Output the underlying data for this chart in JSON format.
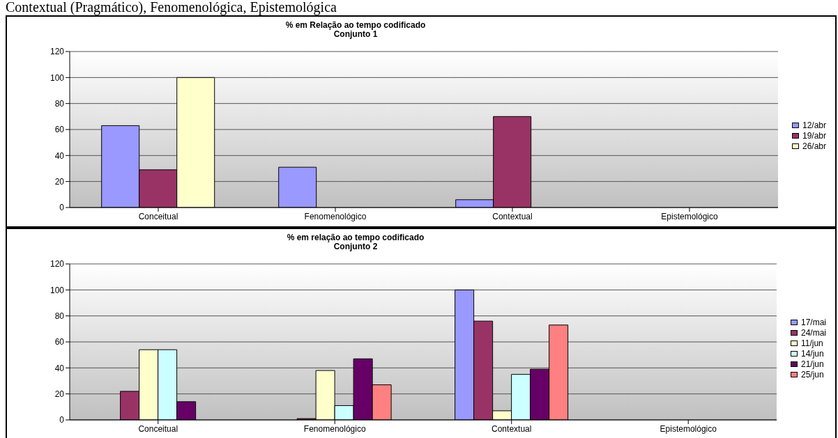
{
  "chart_data": [
    {
      "type": "bar",
      "title": "% em Relação ao tempo codificado\nConjunto 1",
      "annotations": [
        "Contextual (Pragmático), Fenomenológica, Epistemológica"
      ],
      "categories": [
        "Conceitual",
        "Fenomenológico",
        "Contextual",
        "Epistemológico"
      ],
      "series": [
        {
          "name": "12/abr",
          "color": "#9999ff",
          "values": [
            63,
            31,
            6,
            0
          ]
        },
        {
          "name": "19/abr",
          "color": "#993366",
          "values": [
            29,
            0,
            70,
            0
          ]
        },
        {
          "name": "26/abr",
          "color": "#ffffcc",
          "values": [
            100,
            0,
            0,
            0
          ]
        }
      ],
      "ylim": [
        0,
        120
      ],
      "yticks": [
        0,
        20,
        40,
        60,
        80,
        100,
        120
      ],
      "grid": "y",
      "legend": "right"
    },
    {
      "type": "bar",
      "title": "% em relação ao tempo codificado\nConjunto 2",
      "categories": [
        "Conceitual",
        "Fenomenológico",
        "Contextual",
        "Epistemológico"
      ],
      "series": [
        {
          "name": "17/mai",
          "color": "#9999ff",
          "values": [
            0,
            0,
            100,
            0
          ]
        },
        {
          "name": "24/mai",
          "color": "#993366",
          "values": [
            22,
            1,
            76,
            0
          ]
        },
        {
          "name": "11/jun",
          "color": "#ffffcc",
          "values": [
            54,
            38,
            7,
            0
          ]
        },
        {
          "name": "14/jun",
          "color": "#ccffff",
          "values": [
            54,
            11,
            35,
            0
          ]
        },
        {
          "name": "21/jun",
          "color": "#660066",
          "values": [
            14,
            47,
            39,
            0
          ]
        },
        {
          "name": "25/jun",
          "color": "#ff8080",
          "values": [
            0,
            27,
            73,
            0
          ]
        }
      ],
      "ylim": [
        0,
        120
      ],
      "yticks": [
        0,
        20,
        40,
        60,
        80,
        100,
        120
      ],
      "grid": "y",
      "legend": "right"
    }
  ]
}
